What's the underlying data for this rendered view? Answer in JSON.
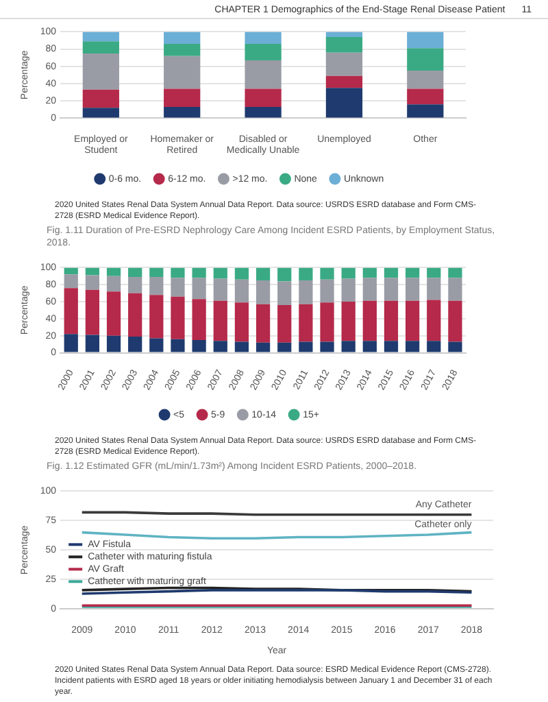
{
  "chart_data": [
    {
      "type": "other",
      "title": "CHAPTER 1   Demographics of the End-Stage Renal Disease Patient",
      "annotations": [
        "11"
      ]
    },
    {
      "type": "bar",
      "title": "Fig. 1.11 Duration of Pre-ESRD Nephrology Care Among Incident ESRD Patients, by Employment Status, 2018.",
      "categories": [
        "Employed or Student",
        "Homemaker or Retired",
        "Disabled or Medically Unable",
        "Unemployed",
        "Other"
      ],
      "stacked": true,
      "ylabel": "Percentage",
      "ylim": [
        0,
        100
      ],
      "yticks": [
        0,
        20,
        40,
        60,
        80,
        100
      ],
      "grid": "y",
      "legend": "bottom",
      "series": [
        {
          "name": "0-6 mo.",
          "color": "#1f3a6e",
          "values": [
            12,
            13,
            13,
            35,
            16
          ]
        },
        {
          "name": "6-12 mo.",
          "color": "#b5294a",
          "values": [
            21,
            21,
            21,
            14,
            18
          ]
        },
        {
          "name": ">12 mo.",
          "color": "#9a9ca5",
          "values": [
            42,
            38,
            33,
            27,
            21
          ]
        },
        {
          "name": "None",
          "color": "#3aaa85",
          "values": [
            14,
            14,
            19,
            18,
            26
          ]
        },
        {
          "name": "Unknown",
          "color": "#6baed6",
          "values": [
            11,
            14,
            14,
            6,
            19
          ]
        }
      ],
      "annotations": [
        "2020 United States Renal Data System Annual Data Report. Data source: USRDS ESRD database and Form CMS-2728 (ESRD Medical Evidence Report)."
      ]
    },
    {
      "type": "bar",
      "title": "Fig. 1.12 Estimated GFR (mL/min/1.73m²) Among Incident ESRD Patients, 2000–2018.",
      "categories": [
        "2000",
        "2001",
        "2002",
        "2003",
        "2004",
        "2005",
        "2006",
        "2007",
        "2008",
        "2009",
        "2010",
        "2011",
        "2012",
        "2013",
        "2014",
        "2015",
        "2016",
        "2017",
        "2018"
      ],
      "stacked": true,
      "ylabel": "Percentage",
      "ylim": [
        0,
        100
      ],
      "yticks": [
        0,
        20,
        40,
        60,
        80,
        100
      ],
      "grid": "y",
      "legend": "bottom",
      "series": [
        {
          "name": "<5",
          "color": "#1f3a6e",
          "values": [
            22,
            21,
            20,
            19,
            17,
            16,
            15,
            14,
            13,
            12,
            12,
            13,
            13,
            14,
            14,
            14,
            14,
            14,
            13
          ]
        },
        {
          "name": "5-9",
          "color": "#b5294a",
          "values": [
            54,
            53,
            52,
            51,
            51,
            50,
            48,
            47,
            46,
            45,
            44,
            44,
            46,
            46,
            47,
            47,
            47,
            48,
            48
          ]
        },
        {
          "name": "10-14",
          "color": "#9a9ca5",
          "values": [
            16,
            17,
            18,
            19,
            21,
            22,
            25,
            26,
            27,
            28,
            28,
            28,
            27,
            27,
            27,
            27,
            27,
            26,
            27
          ]
        },
        {
          "name": "15+",
          "color": "#3aaa85",
          "values": [
            8,
            9,
            10,
            11,
            11,
            12,
            12,
            13,
            14,
            15,
            16,
            15,
            14,
            13,
            12,
            12,
            12,
            12,
            12
          ]
        }
      ],
      "annotations": [
        "2020 United States Renal Data System Annual Data Report. Data source: USRDS ESRD database and Form CMS-2728 (ESRD Medical Evidence Report)."
      ]
    },
    {
      "type": "line",
      "categories": [
        "2009",
        "2010",
        "2011",
        "2012",
        "2013",
        "2014",
        "2015",
        "2016",
        "2017",
        "2018"
      ],
      "xlabel": "Year",
      "ylabel": "Percentage",
      "ylim": [
        0,
        100
      ],
      "yticks": [
        0,
        25,
        50,
        75,
        100
      ],
      "grid": "y",
      "legend": "left",
      "marker": "none",
      "line_style": "solid",
      "series": [
        {
          "color": "#3a3a3a",
          "values": [
            82,
            82,
            81,
            81,
            80,
            80,
            80,
            80,
            80,
            80
          ]
        },
        {
          "color": "#5fb3c3",
          "values": [
            65,
            63,
            61,
            60,
            60,
            61,
            61,
            62,
            63,
            65
          ]
        },
        {
          "name": "AV Fistula",
          "color": "#1f3a6e",
          "values": [
            13,
            14,
            15,
            16,
            16,
            16,
            16,
            15,
            15,
            14
          ]
        },
        {
          "name": "Catheter with maturing fistula",
          "color": "#222222",
          "values": [
            16,
            17,
            18,
            18,
            17,
            17,
            16,
            16,
            16,
            15
          ]
        },
        {
          "name": "AV Graft",
          "color": "#b5294a",
          "values": [
            3,
            3,
            3,
            3,
            3,
            3,
            3,
            3,
            3,
            3
          ]
        },
        {
          "name": "Catheter with maturing graft",
          "color": "#3aa89a",
          "values": [
            2,
            2,
            2,
            2,
            2,
            2,
            2,
            2,
            2,
            2
          ]
        }
      ],
      "annotations": [
        {
          "text": "Any Catheter",
          "x": "2018",
          "y": 82
        },
        {
          "text": "Catheter only",
          "x": "2018",
          "y": 65
        },
        "2020 United States Renal Data System Annual Data Report. Data source: ESRD Medical Evidence Report (CMS-2728). Incident patients with ESRD aged 18 years or older initiating hemodialysis between January 1 and December 31 of each year."
      ]
    }
  ]
}
